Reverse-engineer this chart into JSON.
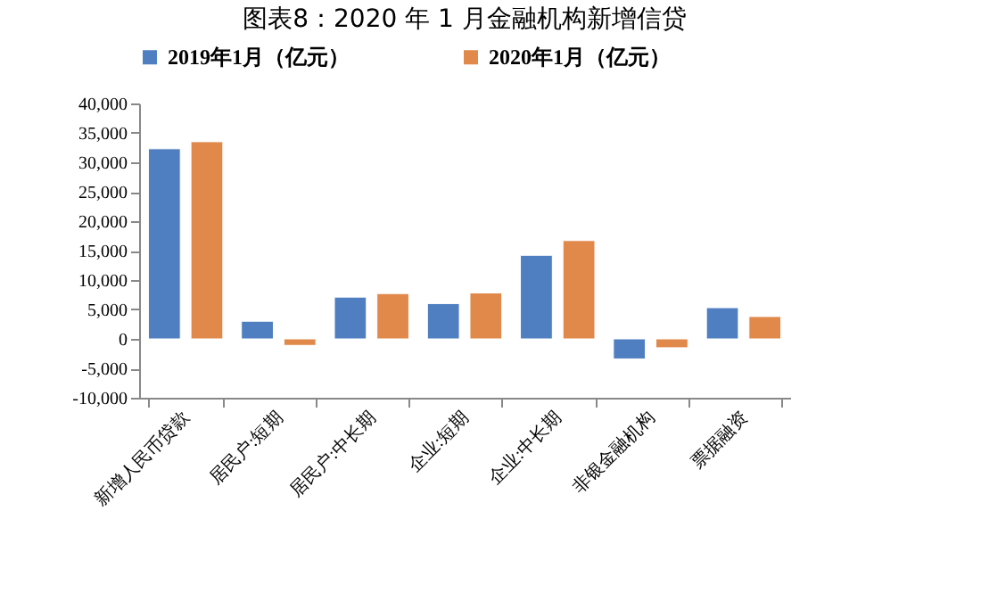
{
  "chart_data": {
    "type": "bar",
    "title": "图表8：2020 年 1 月金融机构新增信贷",
    "categories": [
      "新增人民币贷款",
      "居民户:短期",
      "居民户:中长期",
      "企业:短期",
      "企业:中长期",
      "非银金融机构",
      "票据融资"
    ],
    "series": [
      {
        "name": "2019年1月（亿元）",
        "color": "#4f7fc0",
        "values": [
          32300,
          3000,
          7100,
          6000,
          14200,
          -3400,
          5300
        ]
      },
      {
        "name": "2020年1月（亿元）",
        "color": "#e0894a",
        "values": [
          33500,
          -1100,
          7700,
          7800,
          16700,
          -1500,
          3800
        ]
      }
    ],
    "ylim": [
      -10000,
      40000
    ],
    "yticks": [
      {
        "value": -10000,
        "label": "-10,000"
      },
      {
        "value": -5000,
        "label": "-5,000"
      },
      {
        "value": 0,
        "label": "0"
      },
      {
        "value": 5000,
        "label": "5,000"
      },
      {
        "value": 10000,
        "label": "10,000"
      },
      {
        "value": 15000,
        "label": "15,000"
      },
      {
        "value": 20000,
        "label": "20,000"
      },
      {
        "value": 25000,
        "label": "25,000"
      },
      {
        "value": 30000,
        "label": "30,000"
      },
      {
        "value": 35000,
        "label": "35,000"
      },
      {
        "value": 40000,
        "label": "40,000"
      }
    ],
    "grid": false,
    "legend": "top"
  }
}
